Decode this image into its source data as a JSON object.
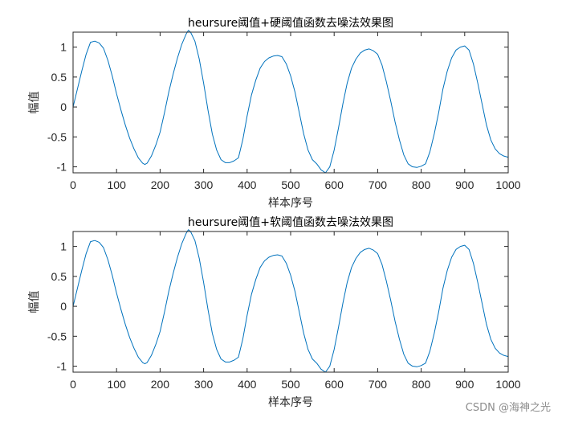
{
  "chart_data": [
    {
      "type": "line",
      "title": "heursure阈值+硬阈值函数去噪法效果图",
      "xlabel": "样本序号",
      "ylabel": "幅值",
      "xlim": [
        0,
        1000
      ],
      "ylim": [
        -1.1,
        1.25
      ],
      "xticks": [
        0,
        100,
        200,
        300,
        400,
        500,
        600,
        700,
        800,
        900,
        1000
      ],
      "yticks": [
        1,
        0.5,
        0,
        -0.5,
        -1
      ],
      "ytick_labels": [
        "1",
        "0.5",
        "0",
        "-0.5",
        "-1"
      ],
      "grid": false,
      "series": [
        {
          "color": "#0072bd",
          "x": [
            0,
            10,
            20,
            30,
            40,
            50,
            60,
            70,
            80,
            90,
            100,
            110,
            120,
            130,
            140,
            150,
            160,
            165,
            170,
            180,
            190,
            200,
            210,
            220,
            230,
            240,
            250,
            260,
            265,
            270,
            280,
            290,
            300,
            310,
            320,
            330,
            340,
            350,
            360,
            370,
            380,
            390,
            400,
            410,
            420,
            430,
            440,
            450,
            460,
            470,
            480,
            490,
            500,
            510,
            520,
            530,
            540,
            550,
            560,
            570,
            580,
            590,
            600,
            610,
            620,
            630,
            640,
            650,
            660,
            670,
            680,
            690,
            700,
            710,
            720,
            730,
            740,
            750,
            760,
            770,
            780,
            790,
            800,
            810,
            820,
            830,
            840,
            850,
            860,
            870,
            880,
            890,
            900,
            910,
            920,
            930,
            940,
            950,
            960,
            970,
            980,
            990,
            1000
          ],
          "y": [
            0,
            0.3,
            0.6,
            0.88,
            1.08,
            1.1,
            1.07,
            0.98,
            0.78,
            0.52,
            0.22,
            -0.05,
            -0.3,
            -0.52,
            -0.7,
            -0.85,
            -0.94,
            -0.96,
            -0.94,
            -0.82,
            -0.64,
            -0.42,
            -0.1,
            0.25,
            0.55,
            0.82,
            1.05,
            1.22,
            1.28,
            1.25,
            1.1,
            0.8,
            0.4,
            -0.05,
            -0.45,
            -0.72,
            -0.88,
            -0.93,
            -0.93,
            -0.9,
            -0.85,
            -0.55,
            -0.15,
            0.2,
            0.45,
            0.65,
            0.76,
            0.82,
            0.85,
            0.86,
            0.84,
            0.72,
            0.52,
            0.25,
            -0.1,
            -0.45,
            -0.72,
            -0.88,
            -0.95,
            -1.05,
            -1.1,
            -1.0,
            -0.72,
            -0.35,
            0.05,
            0.4,
            0.65,
            0.8,
            0.9,
            0.95,
            0.97,
            0.94,
            0.88,
            0.7,
            0.42,
            0.1,
            -0.25,
            -0.55,
            -0.8,
            -0.95,
            -1.0,
            -1.01,
            -0.99,
            -0.95,
            -0.75,
            -0.45,
            -0.1,
            0.3,
            0.6,
            0.82,
            0.95,
            1.0,
            1.02,
            0.95,
            0.72,
            0.4,
            0.05,
            -0.3,
            -0.55,
            -0.7,
            -0.78,
            -0.82,
            -0.84
          ]
        }
      ]
    },
    {
      "type": "line",
      "title": "heursure阈值+软阈值函数去噪法效果图",
      "xlabel": "样本序号",
      "ylabel": "幅值",
      "xlim": [
        0,
        1000
      ],
      "ylim": [
        -1.1,
        1.25
      ],
      "xticks": [
        0,
        100,
        200,
        300,
        400,
        500,
        600,
        700,
        800,
        900,
        1000
      ],
      "yticks": [
        1,
        0.5,
        0,
        -0.5,
        -1
      ],
      "ytick_labels": [
        "1",
        "0.5",
        "0",
        "-0.5",
        "-1"
      ],
      "grid": false,
      "series": [
        {
          "color": "#0072bd",
          "x": [
            0,
            10,
            20,
            30,
            40,
            50,
            60,
            70,
            80,
            90,
            100,
            110,
            120,
            130,
            140,
            150,
            160,
            165,
            170,
            180,
            190,
            200,
            210,
            220,
            230,
            240,
            250,
            260,
            265,
            270,
            280,
            290,
            300,
            310,
            320,
            330,
            340,
            350,
            360,
            370,
            380,
            390,
            400,
            410,
            420,
            430,
            440,
            450,
            460,
            470,
            480,
            490,
            500,
            510,
            520,
            530,
            540,
            550,
            560,
            570,
            580,
            590,
            600,
            610,
            620,
            630,
            640,
            650,
            660,
            670,
            680,
            690,
            700,
            710,
            720,
            730,
            740,
            750,
            760,
            770,
            780,
            790,
            800,
            810,
            820,
            830,
            840,
            850,
            860,
            870,
            880,
            890,
            900,
            910,
            920,
            930,
            940,
            950,
            960,
            970,
            980,
            990,
            1000
          ],
          "y": [
            0,
            0.3,
            0.6,
            0.88,
            1.08,
            1.1,
            1.07,
            0.98,
            0.78,
            0.52,
            0.22,
            -0.05,
            -0.3,
            -0.52,
            -0.7,
            -0.85,
            -0.94,
            -0.96,
            -0.94,
            -0.82,
            -0.64,
            -0.42,
            -0.1,
            0.25,
            0.55,
            0.82,
            1.05,
            1.22,
            1.28,
            1.25,
            1.1,
            0.8,
            0.4,
            -0.05,
            -0.45,
            -0.72,
            -0.88,
            -0.93,
            -0.93,
            -0.9,
            -0.85,
            -0.55,
            -0.15,
            0.2,
            0.45,
            0.65,
            0.76,
            0.82,
            0.85,
            0.86,
            0.84,
            0.72,
            0.52,
            0.25,
            -0.1,
            -0.45,
            -0.72,
            -0.88,
            -0.95,
            -1.05,
            -1.1,
            -1.0,
            -0.72,
            -0.35,
            0.05,
            0.4,
            0.65,
            0.8,
            0.9,
            0.95,
            0.97,
            0.94,
            0.88,
            0.7,
            0.42,
            0.1,
            -0.25,
            -0.55,
            -0.8,
            -0.95,
            -1.0,
            -1.01,
            -0.99,
            -0.95,
            -0.75,
            -0.45,
            -0.1,
            0.3,
            0.6,
            0.82,
            0.95,
            1.0,
            1.02,
            0.95,
            0.72,
            0.4,
            0.05,
            -0.3,
            -0.55,
            -0.7,
            -0.78,
            -0.82,
            -0.84
          ]
        }
      ]
    }
  ],
  "watermark": "CSDN @海神之光"
}
